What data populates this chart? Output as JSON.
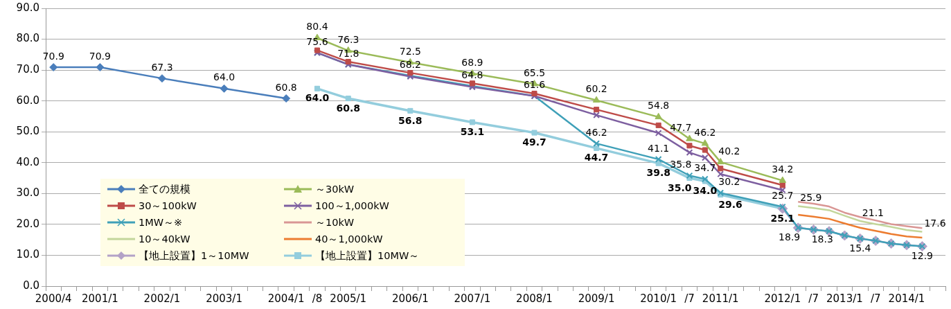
{
  "chart_data": {
    "type": "line",
    "categories": [
      "2000/4",
      null,
      null,
      "2001/1",
      null,
      null,
      null,
      "2002/1",
      null,
      null,
      null,
      "2003/1",
      null,
      null,
      null,
      "2004/1",
      null,
      "/8",
      null,
      "2005/1",
      null,
      null,
      null,
      "2006/1",
      null,
      null,
      null,
      "2007/1",
      null,
      null,
      null,
      "2008/1",
      null,
      null,
      null,
      "2009/1",
      null,
      null,
      null,
      "2010/1",
      null,
      "/7",
      null,
      "2011/1",
      null,
      null,
      null,
      "2012/1",
      null,
      "/7",
      null,
      "2013/1",
      null,
      "/7",
      null,
      "2014/1",
      null,
      null
    ],
    "ylim": [
      0,
      90
    ],
    "yticks": [
      {
        "value": 0,
        "label": "0.0"
      },
      {
        "value": 10,
        "label": "10.0"
      },
      {
        "value": 20,
        "label": "20.0"
      },
      {
        "value": 30,
        "label": "30.0"
      },
      {
        "value": 40,
        "label": "40.0"
      },
      {
        "value": 50,
        "label": "50.0"
      },
      {
        "value": 60,
        "label": "60.0"
      },
      {
        "value": 70,
        "label": "70.0"
      },
      {
        "value": 80,
        "label": "80.0"
      },
      {
        "value": 90,
        "label": "90.0"
      }
    ],
    "grid": "y",
    "legend": "bottom left",
    "series": [
      {
        "name": "全ての規模",
        "color": "#4a7ebb",
        "marker": "diamond",
        "values": [
          70.9,
          null,
          null,
          70.9,
          null,
          null,
          null,
          67.3,
          null,
          null,
          null,
          64.0,
          null,
          null,
          null,
          60.8,
          null,
          null,
          null,
          null,
          null,
          null,
          null,
          null,
          null,
          null,
          null,
          null,
          null,
          null,
          null,
          null,
          null,
          null,
          null,
          null,
          null,
          null,
          null,
          null,
          null,
          null,
          null,
          null,
          null,
          null,
          null,
          null,
          null,
          null,
          null,
          null,
          null,
          null,
          null,
          null,
          null,
          null
        ],
        "value_labels": [
          "70.9",
          null,
          null,
          "70.9",
          null,
          null,
          null,
          "67.3",
          null,
          null,
          null,
          "64.0",
          null,
          null,
          null,
          "60.8",
          null,
          null,
          null,
          null,
          null,
          null,
          null,
          null,
          null,
          null,
          null,
          null,
          null,
          null,
          null,
          null,
          null,
          null,
          null,
          null,
          null,
          null,
          null,
          null,
          null,
          null,
          null,
          null,
          null,
          null,
          null,
          null,
          null,
          null,
          null,
          null,
          null,
          null,
          null,
          null,
          null,
          null
        ]
      },
      {
        "name": "～30kW",
        "color": "#9bbb59",
        "marker": "triangle",
        "values": [
          null,
          null,
          null,
          null,
          null,
          null,
          null,
          null,
          null,
          null,
          null,
          null,
          null,
          null,
          null,
          null,
          null,
          80.4,
          null,
          76.3,
          null,
          null,
          null,
          72.5,
          null,
          null,
          null,
          68.9,
          null,
          null,
          null,
          65.5,
          null,
          null,
          null,
          60.2,
          null,
          null,
          null,
          54.8,
          null,
          47.7,
          46.2,
          40.2,
          null,
          null,
          null,
          34.2,
          null,
          null,
          null,
          null,
          null,
          null,
          null,
          null,
          null,
          null
        ],
        "value_labels": [
          null,
          null,
          null,
          null,
          null,
          null,
          null,
          null,
          null,
          null,
          null,
          null,
          null,
          null,
          null,
          null,
          null,
          "80.4",
          null,
          "76.3",
          null,
          null,
          null,
          "72.5",
          null,
          null,
          null,
          "68.9",
          null,
          null,
          null,
          "65.5",
          null,
          null,
          null,
          "60.2",
          null,
          null,
          null,
          "54.8",
          null,
          "47.7",
          "46.2",
          "40.2",
          null,
          null,
          null,
          "34.2",
          null,
          null,
          null,
          null,
          null,
          null,
          null,
          null,
          null,
          null
        ]
      },
      {
        "name": "30～100kW",
        "color": "#be4b48",
        "marker": "square",
        "values": [
          null,
          null,
          null,
          null,
          null,
          null,
          null,
          null,
          null,
          null,
          null,
          null,
          null,
          null,
          null,
          null,
          null,
          76.4,
          null,
          72.7,
          null,
          null,
          null,
          69.1,
          null,
          null,
          null,
          65.7,
          null,
          null,
          null,
          62.4,
          null,
          null,
          null,
          57.2,
          null,
          null,
          null,
          52.1,
          null,
          45.5,
          44.1,
          38.1,
          null,
          null,
          null,
          32.7,
          null,
          null,
          null,
          null,
          null,
          null,
          null,
          null,
          null,
          null
        ]
      },
      {
        "name": "100～1,000kW",
        "color": "#7d5fa0",
        "marker": "cross",
        "values": [
          null,
          null,
          null,
          null,
          null,
          null,
          null,
          null,
          null,
          null,
          null,
          null,
          null,
          null,
          null,
          null,
          null,
          75.6,
          null,
          71.8,
          null,
          null,
          null,
          67.9,
          null,
          null,
          null,
          64.5,
          null,
          null,
          null,
          61.6,
          null,
          null,
          null,
          55.4,
          null,
          null,
          null,
          49.6,
          null,
          43.3,
          41.6,
          36.3,
          null,
          null,
          null,
          31.1,
          null,
          null,
          null,
          null,
          null,
          null,
          null,
          null,
          null,
          null
        ]
      },
      {
        "name": "1MW～※",
        "color": "#3fa0b8",
        "marker": "cross",
        "values": [
          null,
          null,
          null,
          null,
          null,
          null,
          null,
          null,
          null,
          null,
          null,
          null,
          null,
          null,
          null,
          null,
          null,
          75.6,
          null,
          71.8,
          null,
          null,
          null,
          68.2,
          null,
          null,
          null,
          64.8,
          null,
          null,
          null,
          61.6,
          null,
          null,
          null,
          46.2,
          null,
          null,
          null,
          41.1,
          null,
          35.8,
          34.7,
          30.2,
          null,
          null,
          null,
          25.7,
          18.9,
          18.3,
          17.8,
          16.4,
          15.4,
          14.7,
          13.8,
          13.3,
          12.9,
          null
        ],
        "value_labels": [
          null,
          null,
          null,
          null,
          null,
          null,
          null,
          null,
          null,
          null,
          null,
          null,
          null,
          null,
          null,
          null,
          null,
          "75.6",
          null,
          "71.8",
          null,
          null,
          null,
          "68.2",
          null,
          null,
          null,
          "64.8",
          null,
          null,
          null,
          "61.6",
          null,
          null,
          null,
          "46.2",
          null,
          null,
          null,
          "41.1",
          null,
          "35.8",
          "34.7",
          "30.2",
          null,
          null,
          null,
          "25.7",
          null,
          null,
          null,
          null,
          null,
          null,
          null,
          null,
          null,
          null
        ]
      },
      {
        "name": "～10kW",
        "color": "#d99694",
        "marker": "none",
        "values": [
          null,
          null,
          null,
          null,
          null,
          null,
          null,
          null,
          null,
          null,
          null,
          null,
          null,
          null,
          null,
          null,
          null,
          null,
          null,
          null,
          null,
          null,
          null,
          null,
          null,
          null,
          null,
          null,
          null,
          null,
          null,
          null,
          null,
          null,
          null,
          null,
          null,
          null,
          null,
          null,
          null,
          null,
          null,
          null,
          null,
          null,
          null,
          null,
          27.3,
          26.7,
          25.8,
          23.8,
          22.4,
          21.3,
          20.1,
          19.4,
          18.8,
          null
        ]
      },
      {
        "name": "10～40kW",
        "color": "#c3d69b",
        "marker": "none",
        "values": [
          null,
          null,
          null,
          null,
          null,
          null,
          null,
          null,
          null,
          null,
          null,
          null,
          null,
          null,
          null,
          null,
          null,
          null,
          null,
          null,
          null,
          null,
          null,
          null,
          null,
          null,
          null,
          null,
          null,
          null,
          null,
          null,
          null,
          null,
          null,
          null,
          null,
          null,
          null,
          null,
          null,
          null,
          null,
          null,
          null,
          null,
          null,
          null,
          25.9,
          25.3,
          24.6,
          22.8,
          21.1,
          20.1,
          19.2,
          18.2,
          17.6,
          null
        ],
        "value_labels": [
          null,
          null,
          null,
          null,
          null,
          null,
          null,
          null,
          null,
          null,
          null,
          null,
          null,
          null,
          null,
          null,
          null,
          null,
          null,
          null,
          null,
          null,
          null,
          null,
          null,
          null,
          null,
          null,
          null,
          null,
          null,
          null,
          null,
          null,
          null,
          null,
          null,
          null,
          null,
          null,
          null,
          null,
          null,
          null,
          null,
          null,
          null,
          null,
          "25.9",
          null,
          null,
          null,
          "21.1",
          null,
          null,
          null,
          "17.6",
          null
        ]
      },
      {
        "name": "40～1,000kW",
        "color": "#ec7c30",
        "marker": "none",
        "values": [
          null,
          null,
          null,
          null,
          null,
          null,
          null,
          null,
          null,
          null,
          null,
          null,
          null,
          null,
          null,
          null,
          null,
          null,
          null,
          null,
          null,
          null,
          null,
          null,
          null,
          null,
          null,
          null,
          null,
          null,
          null,
          null,
          null,
          null,
          null,
          null,
          null,
          null,
          null,
          null,
          null,
          null,
          null,
          null,
          null,
          null,
          null,
          null,
          23.1,
          22.5,
          21.8,
          20.3,
          18.9,
          17.9,
          16.9,
          16.1,
          15.7,
          null
        ]
      },
      {
        "name": "【地上設置】1～10MW",
        "color": "#b3a2c7",
        "marker": "diamond",
        "values": [
          null,
          null,
          null,
          null,
          null,
          null,
          null,
          null,
          null,
          null,
          null,
          null,
          null,
          null,
          null,
          null,
          null,
          null,
          null,
          null,
          null,
          null,
          null,
          null,
          null,
          null,
          null,
          null,
          null,
          null,
          null,
          null,
          null,
          null,
          null,
          null,
          null,
          null,
          null,
          null,
          null,
          null,
          null,
          null,
          null,
          null,
          null,
          25.1,
          18.9,
          18.3,
          17.8,
          16.4,
          15.4,
          14.7,
          13.8,
          13.3,
          12.9,
          null
        ],
        "value_labels": [
          null,
          null,
          null,
          null,
          null,
          null,
          null,
          null,
          null,
          null,
          null,
          null,
          null,
          null,
          null,
          null,
          null,
          null,
          null,
          null,
          null,
          null,
          null,
          null,
          null,
          null,
          null,
          null,
          null,
          null,
          null,
          null,
          null,
          null,
          null,
          null,
          null,
          null,
          null,
          null,
          null,
          null,
          null,
          null,
          null,
          null,
          null,
          null,
          "18.9",
          "18.3",
          null,
          null,
          "15.4",
          null,
          null,
          null,
          "12.9",
          null
        ]
      },
      {
        "name": "【地上設置】10MW～",
        "color": "#93cddd",
        "marker": "square",
        "values": [
          null,
          null,
          null,
          null,
          null,
          null,
          null,
          null,
          null,
          null,
          null,
          null,
          null,
          null,
          null,
          null,
          null,
          64.0,
          null,
          60.8,
          null,
          null,
          null,
          56.8,
          null,
          null,
          null,
          53.1,
          null,
          null,
          null,
          49.7,
          null,
          null,
          null,
          44.7,
          null,
          null,
          null,
          39.8,
          null,
          35.0,
          34.0,
          29.6,
          null,
          null,
          null,
          25.1,
          null,
          null,
          null,
          null,
          null,
          null,
          null,
          null,
          null,
          null
        ],
        "value_labels": [
          null,
          null,
          null,
          null,
          null,
          null,
          null,
          null,
          null,
          null,
          null,
          null,
          null,
          null,
          null,
          null,
          null,
          "64.0",
          null,
          "60.8",
          null,
          null,
          null,
          "56.8",
          null,
          null,
          null,
          "53.1",
          null,
          null,
          null,
          "49.7",
          null,
          null,
          null,
          "44.7",
          null,
          null,
          null,
          "39.8",
          null,
          "35.0",
          "34.0",
          "29.6",
          null,
          null,
          null,
          "25.1",
          null,
          null,
          null,
          null,
          null,
          null,
          null,
          null,
          null,
          null
        ]
      }
    ]
  }
}
